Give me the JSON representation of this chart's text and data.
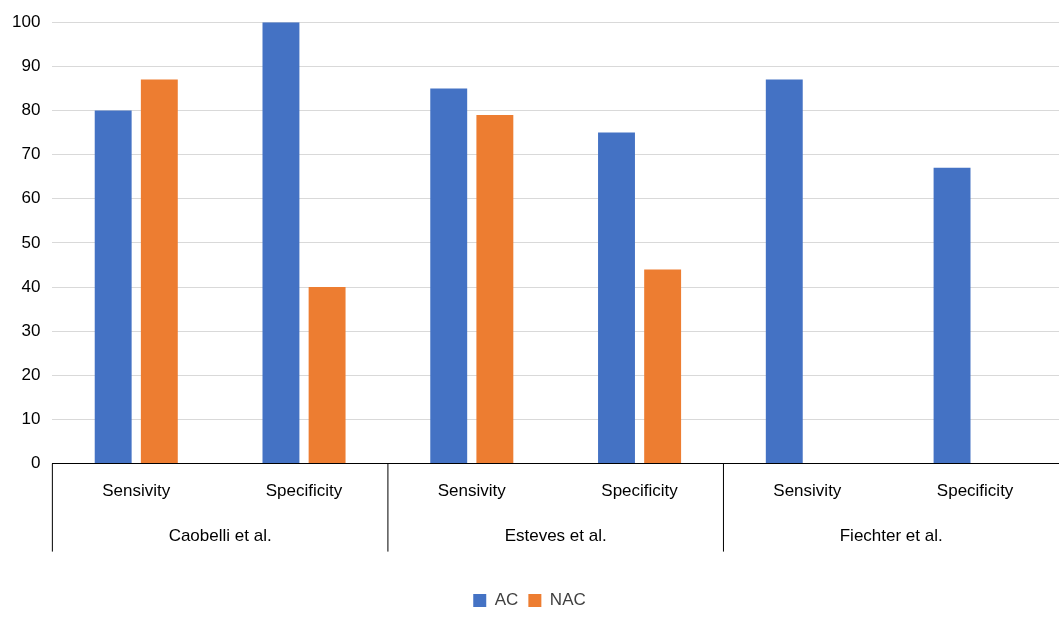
{
  "chart_data": {
    "type": "bar",
    "categories": [
      "Sensivity",
      "Specificity",
      "Sensivity",
      "Specificity",
      "Sensivity",
      "Specificity"
    ],
    "series": [
      {
        "name": "AC",
        "color": "#4472c4",
        "values": [
          80,
          100,
          85,
          75,
          87,
          67
        ]
      },
      {
        "name": "NAC",
        "color": "#ed7d31",
        "values": [
          87,
          40,
          79,
          44,
          null,
          null
        ]
      }
    ],
    "annotations": [
      "Caobelli et al.",
      "Esteves et al.",
      "Fiechter et al."
    ],
    "ylim": [
      0,
      100
    ],
    "yticks": [
      0,
      10,
      20,
      30,
      40,
      50,
      60,
      70,
      80,
      90,
      100
    ],
    "grid": "y",
    "legend": "bottom"
  }
}
